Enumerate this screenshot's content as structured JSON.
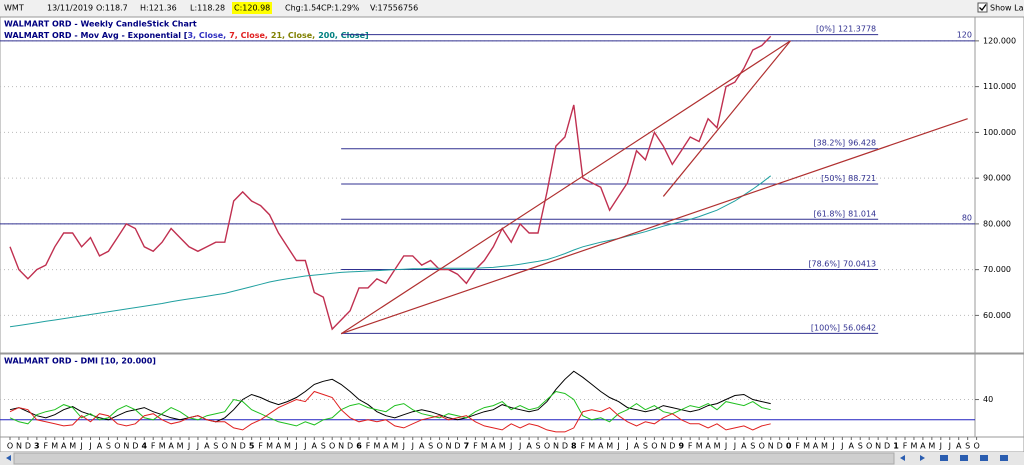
{
  "header": {
    "symbol": "WMT",
    "date": "13/11/2019",
    "open": "O:118.7",
    "high": "H:121.36",
    "low": "L:118.28",
    "close": "C:120.98",
    "change": "Chg:1.54",
    "change_pct": "CP:1.29%",
    "volume": "V:17556756",
    "show_last": "Show Last"
  },
  "chart_data": [
    {
      "type": "line",
      "title": "WALMART ORD - Weekly CandleStick Chart",
      "legend": [
        {
          "text": "WALMART ORD - Mov Avg - Exponential [",
          "color": "#000080"
        },
        {
          "text": "3, Close,",
          "color": "#3030c0"
        },
        {
          "text": "7, Close,",
          "color": "#e02020"
        },
        {
          "text": "21, Close,",
          "color": "#808000"
        },
        {
          "text": "200, Close]",
          "color": "#008080"
        }
      ],
      "categories": [
        "O",
        "N",
        "D",
        "3",
        "F",
        "M",
        "A",
        "M",
        "J",
        "J",
        "A",
        "S",
        "O",
        "N",
        "D",
        "4",
        "F",
        "M",
        "A",
        "M",
        "J",
        "J",
        "A",
        "S",
        "O",
        "N",
        "D",
        "5",
        "F",
        "M",
        "A",
        "M",
        "J",
        "J",
        "A",
        "S",
        "O",
        "N",
        "D",
        "6",
        "F",
        "M",
        "A",
        "M",
        "J",
        "J",
        "A",
        "S",
        "O",
        "N",
        "D",
        "7",
        "F",
        "M",
        "A",
        "M",
        "J",
        "J",
        "A",
        "S",
        "O",
        "N",
        "D",
        "8",
        "F",
        "M",
        "A",
        "M",
        "J",
        "J",
        "A",
        "S",
        "O",
        "N",
        "D",
        "9",
        "F",
        "M",
        "A",
        "M",
        "J",
        "J",
        "A",
        "S",
        "O",
        "N",
        "D",
        "0",
        "F",
        "M",
        "A",
        "M",
        "J",
        "J",
        "A",
        "S",
        "O",
        "N",
        "D",
        "1",
        "F",
        "M",
        "A",
        "M",
        "J",
        "J",
        "A",
        "S",
        "O"
      ],
      "series": [
        {
          "color": "#c03050",
          "values": [
            75,
            70,
            68,
            70,
            71,
            75,
            78,
            78,
            75,
            77,
            73,
            74,
            77,
            80,
            79,
            75,
            74,
            76,
            79,
            77,
            75,
            74,
            75,
            76,
            76,
            85,
            87,
            85,
            84,
            82,
            78,
            75,
            72,
            72,
            65,
            64,
            57,
            59,
            61,
            66,
            66,
            68,
            67,
            70,
            73,
            73,
            71,
            72,
            70,
            70,
            69,
            67,
            70,
            72,
            75,
            79,
            76,
            80,
            78,
            78,
            87,
            97,
            99,
            106,
            90,
            89,
            88,
            83,
            86,
            89,
            96,
            94,
            100,
            97,
            93,
            96,
            99,
            98,
            103,
            101,
            110,
            111,
            114,
            118,
            119,
            121,
            null,
            null,
            null,
            null,
            null,
            null,
            null,
            null,
            null,
            null,
            null,
            null,
            null,
            null,
            null,
            null,
            null,
            null,
            null,
            null,
            null,
            null,
            null
          ]
        },
        {
          "color": "#20a0a0",
          "values": [
            57.5,
            57.8,
            58.1,
            58.4,
            58.7,
            59.0,
            59.3,
            59.6,
            59.9,
            60.2,
            60.5,
            60.8,
            61.1,
            61.4,
            61.7,
            62.0,
            62.3,
            62.6,
            63.0,
            63.3,
            63.6,
            63.9,
            64.2,
            64.5,
            64.8,
            65.3,
            65.8,
            66.3,
            66.8,
            67.3,
            67.7,
            68.0,
            68.3,
            68.6,
            68.8,
            69.0,
            69.2,
            69.4,
            69.5,
            69.6,
            69.7,
            69.8,
            69.9,
            70.0,
            70.1,
            70.2,
            70.2,
            70.3,
            70.3,
            70.3,
            70.3,
            70.3,
            70.3,
            70.4,
            70.5,
            70.7,
            70.9,
            71.2,
            71.5,
            71.8,
            72.2,
            72.8,
            73.5,
            74.3,
            75.0,
            75.5,
            76.0,
            76.4,
            76.8,
            77.3,
            77.8,
            78.3,
            78.9,
            79.5,
            80.0,
            80.5,
            81.0,
            81.6,
            82.3,
            83.0,
            84.0,
            85.0,
            86.3,
            87.6,
            89.0,
            90.5,
            null,
            null,
            null,
            null,
            null,
            null,
            null,
            null,
            null,
            null,
            null,
            null,
            null,
            null,
            null,
            null,
            null,
            null,
            null,
            null,
            null,
            null,
            null
          ]
        }
      ],
      "ylim": [
        52,
        125
      ],
      "yticks": [
        {
          "value": 60,
          "label": "60.000"
        },
        {
          "value": 70,
          "label": "70.000"
        },
        {
          "value": 80,
          "label": "80.000"
        },
        {
          "value": 90,
          "label": "90.000"
        },
        {
          "value": 100,
          "label": "100.000"
        },
        {
          "value": 110,
          "label": "110.000"
        },
        {
          "value": 120,
          "label": "120.000"
        }
      ],
      "hlines": [
        120,
        80
      ],
      "fibonacci": {
        "x": [
          37,
          97
        ],
        "color": "#303090",
        "levels": [
          {
            "label": "[0%]",
            "value": 121.3778
          },
          {
            "label": "[38.2%]",
            "value": 96.428
          },
          {
            "label": "[50%]",
            "value": 88.721
          },
          {
            "label": "[61.8%]",
            "value": 81.014
          },
          {
            "label": "[78.6%]",
            "value": 70.0413
          },
          {
            "label": "[100%]",
            "value": 56.0642
          }
        ]
      },
      "trend_color": "#b03030",
      "trendlines": [
        {
          "x": [
            37,
            107
          ],
          "y": [
            56,
            103
          ]
        },
        {
          "x": [
            37,
            87.2
          ],
          "y": [
            56,
            120
          ]
        },
        {
          "x": [
            73,
            87.2
          ],
          "y": [
            86,
            120
          ]
        }
      ]
    },
    {
      "type": "line",
      "title": "WALMART ORD - DMI [10, 20.000]",
      "ylim": [
        3,
        85
      ],
      "yticks": [
        40
      ],
      "hlines": [
        20
      ],
      "hline_color": "#2020c0",
      "series": [
        {
          "color": "#000000",
          "values": [
            30,
            32,
            28,
            24,
            22,
            25,
            30,
            33,
            28,
            25,
            22,
            20,
            24,
            28,
            30,
            32,
            28,
            25,
            22,
            20,
            22,
            24,
            20,
            18,
            22,
            30,
            40,
            45,
            42,
            38,
            35,
            38,
            42,
            48,
            55,
            58,
            60,
            55,
            48,
            40,
            35,
            28,
            24,
            22,
            25,
            28,
            30,
            28,
            25,
            22,
            20,
            22,
            25,
            28,
            30,
            35,
            32,
            30,
            28,
            30,
            38,
            50,
            60,
            68,
            62,
            55,
            48,
            42,
            38,
            32,
            30,
            28,
            30,
            34,
            32,
            30,
            28,
            30,
            34,
            36,
            40,
            44,
            45,
            40,
            38,
            36,
            null,
            null,
            null,
            null,
            null,
            null,
            null,
            null,
            null,
            null,
            null,
            null,
            null,
            null,
            null,
            null,
            null,
            null,
            null,
            null,
            null,
            null,
            null
          ]
        },
        {
          "color": "#20c020",
          "values": [
            22,
            18,
            16,
            25,
            28,
            30,
            35,
            32,
            22,
            26,
            20,
            22,
            30,
            34,
            30,
            22,
            20,
            26,
            32,
            28,
            22,
            20,
            24,
            26,
            28,
            40,
            38,
            30,
            26,
            22,
            18,
            16,
            14,
            18,
            15,
            20,
            22,
            30,
            34,
            36,
            32,
            30,
            28,
            34,
            36,
            30,
            26,
            24,
            22,
            26,
            24,
            22,
            28,
            32,
            34,
            38,
            30,
            34,
            30,
            32,
            40,
            48,
            46,
            40,
            24,
            20,
            22,
            18,
            26,
            30,
            36,
            30,
            34,
            28,
            26,
            30,
            34,
            32,
            36,
            30,
            38,
            36,
            34,
            38,
            32,
            30,
            null,
            null,
            null,
            null,
            null,
            null,
            null,
            null,
            null,
            null,
            null,
            null,
            null,
            null,
            null,
            null,
            null,
            null,
            null,
            null,
            null,
            null,
            null
          ]
        },
        {
          "color": "#e02020",
          "values": [
            28,
            32,
            30,
            20,
            18,
            16,
            14,
            15,
            24,
            18,
            26,
            24,
            16,
            14,
            16,
            24,
            26,
            20,
            16,
            18,
            22,
            24,
            20,
            18,
            18,
            12,
            10,
            16,
            20,
            26,
            32,
            36,
            40,
            38,
            48,
            45,
            42,
            30,
            22,
            18,
            20,
            18,
            20,
            14,
            12,
            16,
            20,
            22,
            24,
            20,
            22,
            24,
            18,
            14,
            12,
            10,
            16,
            12,
            16,
            14,
            10,
            8,
            8,
            12,
            28,
            30,
            28,
            32,
            24,
            18,
            14,
            18,
            16,
            22,
            26,
            20,
            16,
            16,
            12,
            16,
            10,
            12,
            14,
            10,
            14,
            16,
            null,
            null,
            null,
            null,
            null,
            null,
            null,
            null,
            null,
            null,
            null,
            null,
            null,
            null,
            null,
            null,
            null,
            null,
            null,
            null,
            null,
            null,
            null
          ]
        }
      ]
    }
  ]
}
